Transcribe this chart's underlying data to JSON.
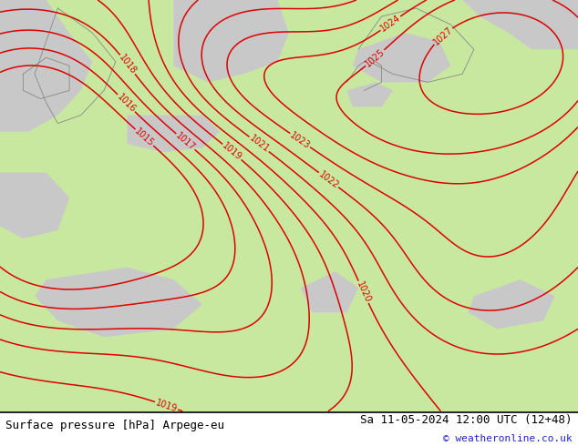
{
  "title_left": "Surface pressure [hPa] Arpege-eu",
  "title_right": "Sa 11-05-2024 12:00 UTC (12+48)",
  "copyright": "© weatheronline.co.uk",
  "bg_color": "#c8e8a0",
  "sea_color": "#c8c8c8",
  "contour_color": "#dd0000",
  "border_color": "#888888",
  "figsize": [
    6.34,
    4.9
  ],
  "dpi": 100,
  "pressure_levels": [
    1015,
    1016,
    1017,
    1018,
    1019,
    1020,
    1021,
    1022,
    1023,
    1024,
    1025,
    1027
  ],
  "font_size_bottom": 9,
  "font_size_copyright": 8
}
